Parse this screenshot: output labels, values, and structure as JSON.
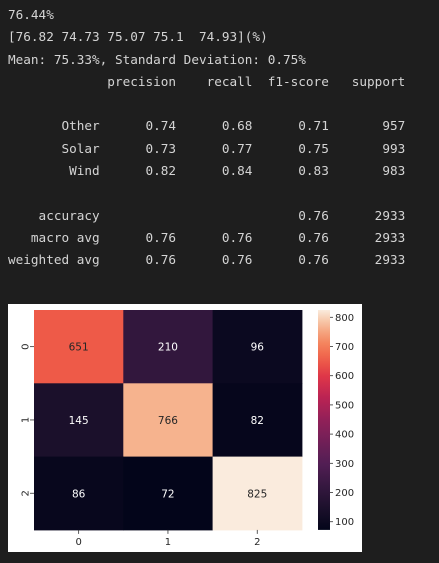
{
  "output": {
    "accuracy_line": "76.44%",
    "scores_line": "[76.82 74.73 75.07 75.1  74.93](%)",
    "stats_line": "Mean: 75.33%, Standard Deviation: 0.75%",
    "report": {
      "headers": [
        "precision",
        "recall",
        "f1-score",
        "support"
      ],
      "class_rows": [
        {
          "label": "Other",
          "precision": "0.74",
          "recall": "0.68",
          "f1": "0.71",
          "support": "957"
        },
        {
          "label": "Solar",
          "precision": "0.73",
          "recall": "0.77",
          "f1": "0.75",
          "support": "993"
        },
        {
          "label": "Wind",
          "precision": "0.82",
          "recall": "0.84",
          "f1": "0.83",
          "support": "983"
        }
      ],
      "summary_rows": [
        {
          "label": "accuracy",
          "precision": "",
          "recall": "",
          "f1": "0.76",
          "support": "2933"
        },
        {
          "label": "macro avg",
          "precision": "0.76",
          "recall": "0.76",
          "f1": "0.76",
          "support": "2933"
        },
        {
          "label": "weighted avg",
          "precision": "0.76",
          "recall": "0.76",
          "f1": "0.76",
          "support": "2933"
        }
      ]
    }
  },
  "chart_data": {
    "type": "heatmap",
    "x_labels": [
      "0",
      "1",
      "2"
    ],
    "y_labels": [
      "0",
      "1",
      "2"
    ],
    "values": [
      [
        651,
        210,
        96
      ],
      [
        145,
        766,
        82
      ],
      [
        86,
        72,
        825
      ]
    ],
    "colormap": "rocket",
    "colorbar": {
      "range": [
        72,
        825
      ],
      "ticks": [
        100,
        200,
        300,
        400,
        500,
        600,
        700,
        800
      ]
    },
    "title": "",
    "xlabel": "",
    "ylabel": ""
  }
}
